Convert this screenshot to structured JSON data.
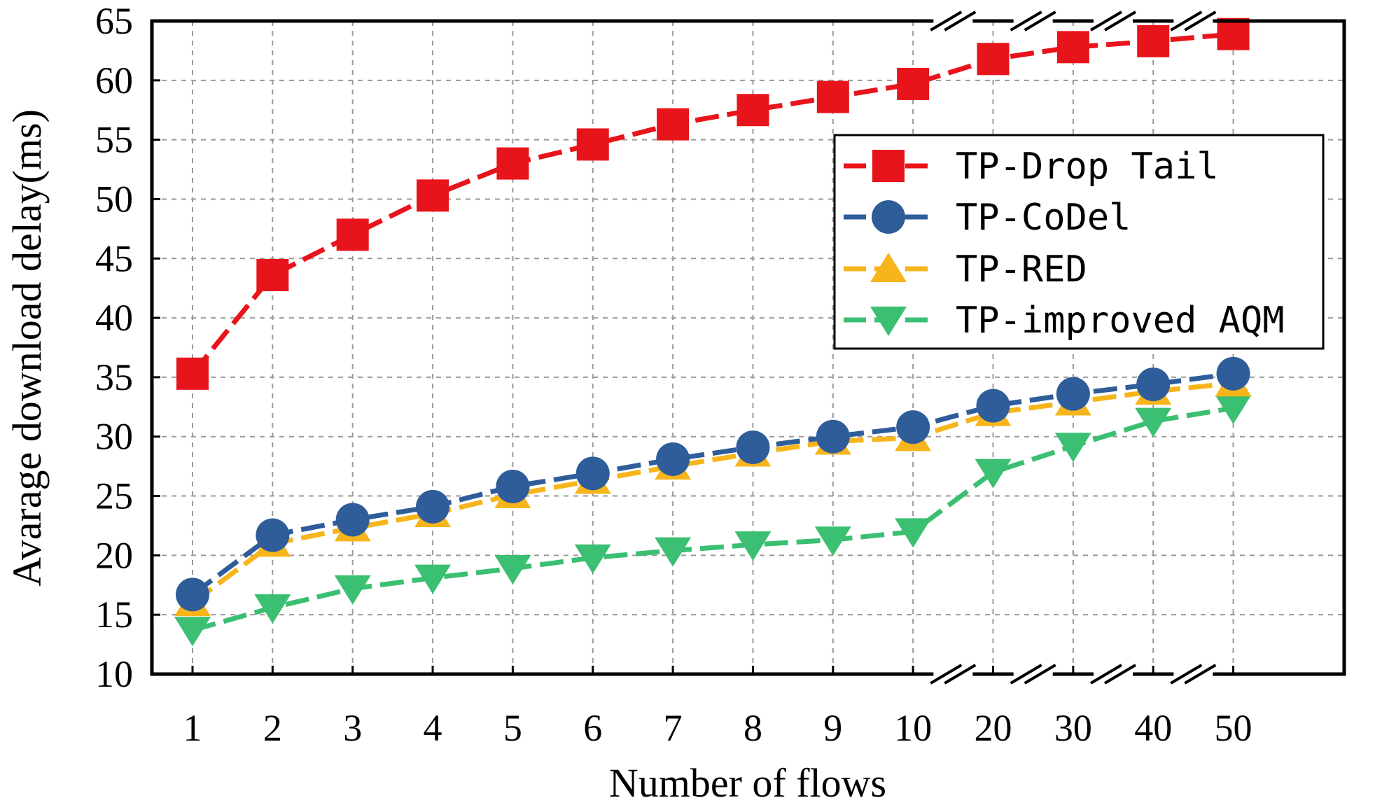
{
  "chart_data": {
    "type": "line",
    "title": "",
    "xlabel": "Number of flows",
    "ylabel": "Avarage download delay(ms)",
    "categories": [
      "1",
      "2",
      "3",
      "4",
      "5",
      "6",
      "7",
      "8",
      "9",
      "10",
      "20",
      "30",
      "40",
      "50"
    ],
    "ylim": [
      10,
      65
    ],
    "yticks": [
      "10",
      "15",
      "20",
      "25",
      "30",
      "35",
      "40",
      "45",
      "50",
      "55",
      "60",
      "65"
    ],
    "grid": true,
    "legend_position": "upper-right",
    "axis_breaks": "x-axis broken between 10-20, 20-30, 30-40, 40-50",
    "series": [
      {
        "name": "TP-Drop Tail",
        "color": "#e8141b",
        "marker": "square",
        "values": [
          35.3,
          43.6,
          47.0,
          50.3,
          53.0,
          54.6,
          56.3,
          57.5,
          58.6,
          59.7,
          61.8,
          62.8,
          63.3,
          63.9
        ]
      },
      {
        "name": "TP-CoDel",
        "color": "#2e5d9a",
        "marker": "circle",
        "values": [
          16.7,
          21.7,
          23.0,
          24.1,
          25.8,
          26.9,
          28.1,
          29.1,
          30.0,
          30.8,
          32.6,
          33.6,
          34.4,
          35.3
        ]
      },
      {
        "name": "TP-RED",
        "color": "#f7b51b",
        "marker": "triangle-up",
        "values": [
          16.0,
          21.0,
          22.3,
          23.5,
          25.1,
          26.3,
          27.5,
          28.6,
          29.6,
          29.9,
          32.0,
          32.9,
          33.8,
          34.5
        ]
      },
      {
        "name": "TP-improved AQM",
        "color": "#3bbf72",
        "marker": "triangle-down",
        "values": [
          13.7,
          15.6,
          17.2,
          18.1,
          18.9,
          19.8,
          20.4,
          20.9,
          21.3,
          22.0,
          27.0,
          29.2,
          31.3,
          32.4
        ]
      }
    ]
  }
}
